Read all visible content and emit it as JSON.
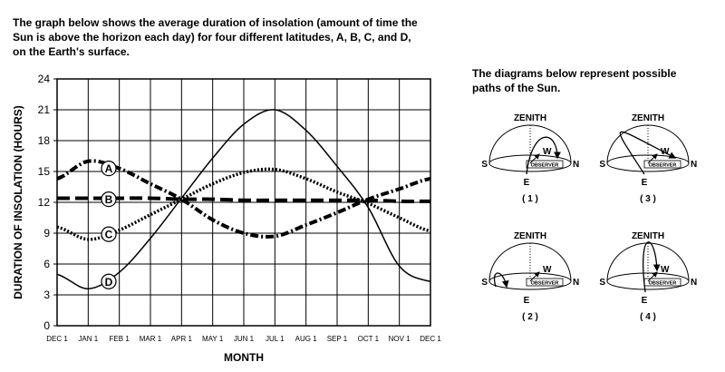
{
  "intro": [
    "The graph below shows the average duration of insolation (amount of time the",
    "Sun is above the horizon each day) for four different latitudes, A, B, C, and D,",
    "on the Earth's surface."
  ],
  "chart_data": {
    "type": "line",
    "xlabel": "MONTH",
    "ylabel": "DURATION OF INSOLATION (HOURS)",
    "categories": [
      "DEC 1",
      "JAN 1",
      "FEB 1",
      "MAR 1",
      "APR 1",
      "MAY 1",
      "JUN 1",
      "JUL 1",
      "AUG 1",
      "SEP 1",
      "OCT 1",
      "NOV 1",
      "DEC 1"
    ],
    "series": [
      {
        "name": "A",
        "color": "#000000",
        "style": "dashdot",
        "values": [
          14.3,
          16.0,
          15.3,
          13.8,
          12.3,
          10.3,
          9.0,
          8.7,
          9.8,
          11.0,
          12.3,
          13.3,
          14.3
        ]
      },
      {
        "name": "B",
        "color": "#000000",
        "style": "dashed",
        "values": [
          12.4,
          12.4,
          12.4,
          12.4,
          12.3,
          12.3,
          12.2,
          12.2,
          12.2,
          12.2,
          12.2,
          12.1,
          12.1
        ]
      },
      {
        "name": "C",
        "color": "#000000",
        "style": "dotted",
        "values": [
          9.6,
          8.4,
          9.3,
          10.8,
          12.3,
          13.8,
          14.9,
          15.2,
          14.3,
          13.0,
          11.9,
          10.5,
          9.2
        ]
      },
      {
        "name": "D",
        "color": "#000000",
        "style": "solid",
        "values": [
          5.0,
          3.6,
          5.2,
          8.5,
          12.4,
          16.3,
          19.6,
          21.0,
          19.0,
          15.5,
          11.5,
          5.8,
          4.3
        ]
      }
    ],
    "ylim": [
      0,
      24
    ],
    "yticks": [
      0,
      3,
      6,
      9,
      12,
      15,
      18,
      21,
      24
    ],
    "grid": true
  },
  "diagrams": {
    "heading": [
      "The diagrams below represent possible",
      "paths of the Sun."
    ],
    "items": [
      {
        "caption": "( 1 )",
        "zenith": "ZENITH",
        "west": "W",
        "east": "E",
        "south": "S",
        "north": "N",
        "observer": "OBSERVER"
      },
      {
        "caption": "( 2 )",
        "zenith": "ZENITH",
        "west": "W",
        "east": "E",
        "south": "S",
        "north": "N",
        "observer": "OBSERVER"
      },
      {
        "caption": "( 3 )",
        "zenith": "ZENITH",
        "west": "W",
        "east": "E",
        "south": "S",
        "north": "N",
        "observer": "OBSERVER"
      },
      {
        "caption": "( 4 )",
        "zenith": "ZENITH",
        "west": "W",
        "east": "E",
        "south": "S",
        "north": "N",
        "observer": "OBSERVER"
      }
    ]
  }
}
